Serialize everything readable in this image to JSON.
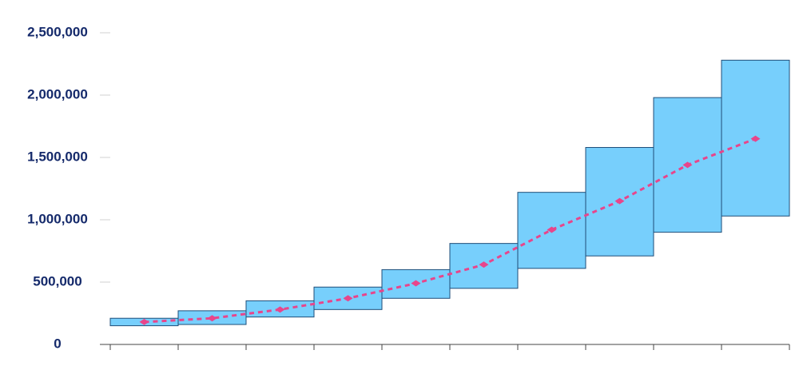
{
  "chart_data": {
    "type": "floating-bar",
    "categories": [
      null,
      null,
      null,
      null,
      null,
      null,
      null,
      null,
      null,
      null
    ],
    "bars": {
      "color": "#77cffc",
      "edge_color": "#1f4e79",
      "low": [
        150000,
        160000,
        220000,
        280000,
        370000,
        450000,
        610000,
        710000,
        900000,
        1030000
      ],
      "high": [
        210000,
        270000,
        350000,
        460000,
        600000,
        810000,
        1220000,
        1580000,
        1980000,
        2280000
      ]
    },
    "line": {
      "color": "#e8458b",
      "dashed": true,
      "values": [
        180000,
        210000,
        280000,
        370000,
        490000,
        640000,
        920000,
        1150000,
        1440000,
        1650000
      ]
    },
    "ylim": [
      0,
      2500000
    ],
    "yticks": [
      0,
      {
        "value": 500000,
        "label": "500,000"
      },
      {
        "value": 1000000,
        "label": "1,000,000"
      },
      {
        "value": 1500000,
        "label": "1,500,000"
      },
      {
        "value": 2000000,
        "label": "2,000,000"
      },
      {
        "value": 2500000,
        "label": "2,500,000"
      }
    ],
    "grid": false
  }
}
